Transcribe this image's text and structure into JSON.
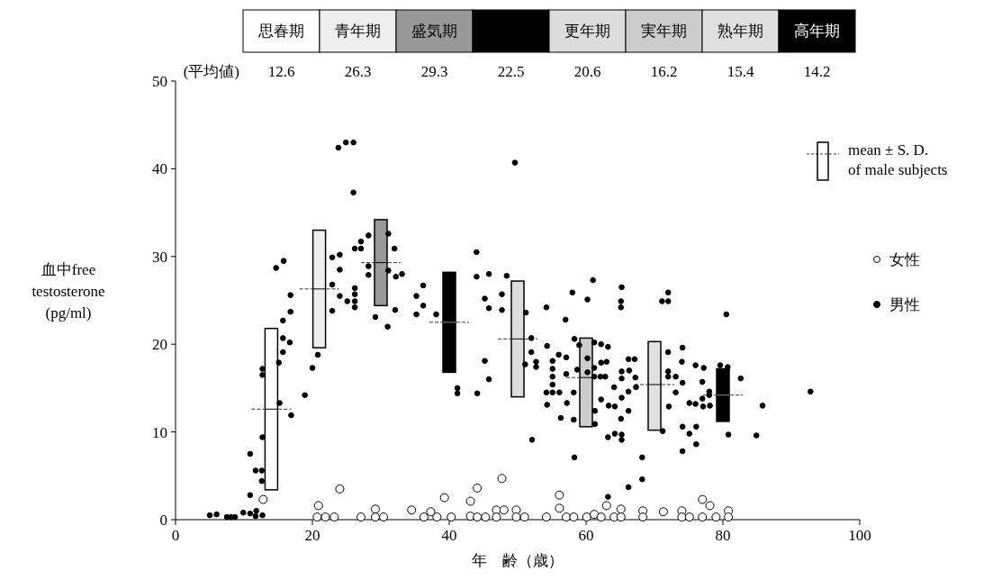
{
  "chart_data": [
    {
      "type": "other",
      "categories": [
        "思春期",
        "青年期",
        "盛気期",
        null,
        "更年期",
        "実年期",
        "熟年期",
        "高年期"
      ],
      "values": [
        12.6,
        26.3,
        29.3,
        22.5,
        20.6,
        16.2,
        15.4,
        14.2
      ],
      "colors": [
        "#ffffff",
        "#eeeeee",
        "#999999",
        "#000000",
        "#dddddd",
        "#cccccc",
        "#e0e0e0",
        "#000000"
      ],
      "data_labels": true,
      "annotations": [
        "(平均値)"
      ]
    },
    {
      "type": "scatter",
      "xlabel": "年　齢（歳）",
      "ylabel": "血中free\ntestosterone\n(pg/ml)",
      "xlim": [
        0,
        100
      ],
      "ylim": [
        0,
        50
      ],
      "xticks": [
        0,
        20,
        40,
        60,
        80,
        100
      ],
      "yticks": [
        0,
        10,
        20,
        30,
        40,
        50
      ],
      "legend": "right",
      "marker": "circle",
      "series": [
        {
          "type": "box",
          "name": "mean ± S. D.\nof male subjects",
          "color": "#000000",
          "colors": [
            "#ffffff",
            "#eeeeee",
            "#999999",
            "#000000",
            "#dddddd",
            "#cccccc",
            "#e0e0e0",
            "#000000"
          ],
          "x": [
            14,
            21,
            30,
            40,
            50,
            60,
            70,
            80
          ],
          "boxes": [
            {
              "low": 3.4,
              "q1": 3.4,
              "median": 12.6,
              "q3": 21.8,
              "high": 21.8
            },
            {
              "low": 19.6,
              "q1": 19.6,
              "median": 26.3,
              "q3": 33.0,
              "high": 33.0
            },
            {
              "low": 24.4,
              "q1": 24.4,
              "median": 29.3,
              "q3": 34.2,
              "high": 34.2
            },
            {
              "low": 16.8,
              "q1": 16.8,
              "median": 22.5,
              "q3": 28.2,
              "high": 28.2
            },
            {
              "low": 14.0,
              "q1": 14.0,
              "median": 20.6,
              "q3": 27.2,
              "high": 27.2
            },
            {
              "low": 10.6,
              "q1": 10.6,
              "median": 16.2,
              "q3": 20.7,
              "high": 20.7
            },
            {
              "low": 10.2,
              "q1": 10.2,
              "median": 15.4,
              "q3": 20.3,
              "high": 20.3
            },
            {
              "low": 11.2,
              "q1": 11.2,
              "median": 14.2,
              "q3": 17.2,
              "high": 17.2
            }
          ]
        },
        {
          "type": "scatter",
          "name": "女性",
          "color": "#ffffff",
          "x": [
            12.8,
            20.9,
            20.7,
            21.9,
            23.2,
            24,
            27.1,
            29.2,
            29.2,
            30.4,
            34.5,
            36.3,
            37.3,
            38.2,
            39.3,
            40.3,
            43.1,
            44.1,
            43.1,
            44.1,
            45.3,
            46.9,
            46.9,
            47.7,
            48,
            49.8,
            49.8,
            51,
            54.2,
            56.1,
            56.1,
            57.1,
            58.2,
            60.1,
            61.2,
            62.2,
            63,
            64.1,
            65.1,
            65.1,
            68.3,
            68.3,
            71.3,
            74,
            74,
            75.1,
            77,
            78.1,
            77,
            79,
            80.8,
            80.8
          ],
          "values": [
            2.3,
            1.6,
            0.3,
            0.3,
            0.3,
            3.5,
            0.3,
            1.2,
            0.3,
            0.3,
            1.1,
            0.3,
            0.9,
            0.3,
            2.5,
            0.3,
            2.1,
            3.6,
            0.4,
            0.3,
            0.3,
            1.1,
            0.3,
            4.7,
            1.1,
            1.1,
            0.3,
            0.3,
            0.3,
            2.8,
            1.3,
            0.3,
            0.3,
            0.3,
            0.6,
            0.3,
            1.6,
            0.3,
            1.2,
            0.3,
            1.0,
            0.3,
            0.9,
            1.0,
            0.3,
            0.3,
            2.3,
            1.6,
            0.3,
            0.3,
            1.0,
            0.3
          ]
        },
        {
          "type": "scatter",
          "name": "男性",
          "color": "#000000",
          "x": [
            5,
            6,
            7.5,
            8.1,
            8.7,
            9.9,
            10.9,
            11.8,
            11.7,
            12.7,
            10.9,
            10.9,
            11.7,
            12.6,
            12.6,
            12.7,
            12.7,
            12.7,
            15.2,
            15.1,
            14.7,
            15.8,
            15.7,
            15.7,
            15.7,
            16.8,
            16.8,
            16.7,
            16.9,
            18.9,
            20,
            20.8,
            22.9,
            24,
            24,
            22.9,
            24,
            22.9,
            23.8,
            24.9,
            26,
            26,
            25.1,
            26.2,
            26.2,
            26.2,
            26.2,
            26.2,
            27.1,
            27.1,
            28.2,
            28.2,
            28.2,
            29.2,
            31.1,
            31.1,
            32,
            32.2,
            33.1,
            32.1,
            31,
            35.2,
            36.2,
            35.2,
            36.2,
            38.1,
            41.2,
            41.2,
            44,
            44,
            45.8,
            45.2,
            45.8,
            47.7,
            47.7,
            45.2,
            45.8,
            44.1,
            49.6,
            48.4,
            51.2,
            52,
            52,
            51.1,
            52.7,
            52.7,
            52.1,
            54.2,
            54.3,
            55.1,
            55.1,
            55.1,
            55.1,
            54.2,
            55.1,
            56.1,
            54.3,
            56,
            57.1,
            57,
            58,
            60.2,
            61,
            58.3,
            57.1,
            58.2,
            57.2,
            56.3,
            58.2,
            58.3,
            59,
            58.7,
            61.2,
            62.2,
            63.2,
            60.2,
            62.2,
            63,
            61.2,
            61.2,
            62.1,
            62.8,
            60.2,
            61.3,
            61.3,
            62.2,
            63.3,
            64.2,
            63.2,
            64.2,
            65.2,
            65.2,
            64.1,
            65.2,
            65.2,
            66.3,
            65.2,
            65.1,
            66.2,
            66.2,
            65.2,
            65.1,
            65.1,
            66.2,
            67.1,
            67.2,
            67.3,
            63.2,
            66.2,
            68.2,
            68.2,
            71.2,
            71.1,
            72,
            72,
            72,
            72,
            72,
            73.1,
            73.1,
            72.1,
            74.1,
            74,
            74.1,
            75.1,
            76,
            76,
            77.2,
            77,
            78,
            78,
            77,
            77.1,
            78.1,
            74.1,
            75.1,
            76.1,
            76.1,
            74.1,
            79.6,
            80.7,
            80.5,
            80.8,
            82.6,
            85.8,
            84.9,
            92.8
          ],
          "values": [
            0.5,
            0.6,
            0.3,
            0.3,
            0.3,
            0.8,
            0.7,
            1.0,
            0.4,
            0.5,
            2.8,
            7.5,
            5.6,
            5.6,
            4.4,
            9.4,
            17.2,
            16.5,
            13.3,
            17.9,
            28.7,
            29.5,
            22.7,
            20.7,
            19.1,
            25.6,
            23.7,
            20.2,
            11.9,
            14.2,
            17.3,
            18.8,
            29.9,
            30.2,
            28.5,
            26.8,
            25.5,
            23.8,
            42.4,
            43,
            43,
            37.3,
            24.9,
            26.4,
            25.7,
            24.9,
            24.2,
            30.9,
            30.9,
            31.7,
            32.4,
            28.9,
            27.9,
            23.1,
            32.6,
            28.4,
            30.9,
            27.7,
            28,
            23.9,
            22,
            25.5,
            26.7,
            23.4,
            24.4,
            23.4,
            15,
            14.4,
            30.5,
            27.7,
            28,
            25.2,
            24.1,
            25.7,
            23.9,
            18.1,
            16,
            14.4,
            40.7,
            27.8,
            23.6,
            20.7,
            19.1,
            17.7,
            18,
            17.4,
            9.1,
            24.2,
            19.8,
            18.1,
            17.2,
            16.3,
            15.4,
            14.5,
            14.5,
            14.5,
            13.1,
            18.8,
            18.5,
            22.8,
            25.9,
            25.1,
            27.3,
            20.6,
            16.6,
            14.5,
            13.3,
            11.6,
            11.4,
            7.1,
            19.9,
            17.1,
            20.2,
            20,
            19.7,
            18.4,
            17.9,
            18,
            17.3,
            16.3,
            16.3,
            16.3,
            16.8,
            12.4,
            10.9,
            13.7,
            13,
            12.9,
            9.4,
            9.8,
            9.7,
            9.1,
            15.1,
            16.9,
            16.1,
            17,
            13.9,
            11.5,
            14.6,
            12.4,
            26.5,
            24.9,
            24.2,
            18.3,
            18.3,
            16.2,
            15.1,
            2.6,
            3.7,
            4.6,
            7.1,
            10.1,
            24.9,
            24.9,
            25.9,
            19.1,
            16.9,
            16.3,
            16.3,
            14.5,
            12.9,
            19.6,
            18,
            15.6,
            13.3,
            13.2,
            17.6,
            17.3,
            15.7,
            14.6,
            14.2,
            13.8,
            12.9,
            13,
            10.6,
            9.8,
            10.6,
            8.6,
            7.8,
            17.6,
            17.4,
            23.4,
            9.7,
            16.1,
            13,
            9.6,
            14.6
          ]
        }
      ]
    }
  ]
}
